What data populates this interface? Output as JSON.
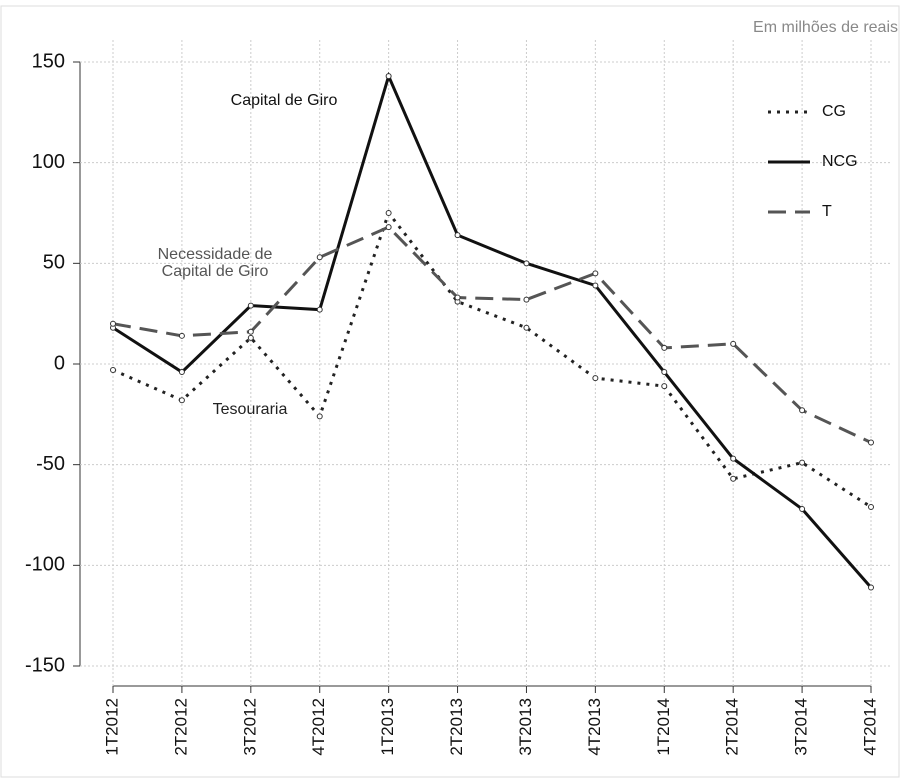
{
  "chart_data": {
    "type": "line",
    "subtitle": "Em milhões de reais",
    "categories": [
      "1T2012",
      "2T2012",
      "3T2012",
      "4T2012",
      "1T2013",
      "2T2013",
      "3T2013",
      "4T2013",
      "1T2014",
      "2T2014",
      "3T2014",
      "4T2014"
    ],
    "series": [
      {
        "name": "CG",
        "color": "#222222",
        "dash": "dotted",
        "values": [
          -3,
          -18,
          13,
          -26,
          75,
          31,
          18,
          -7,
          -11,
          -57,
          -49,
          -71
        ]
      },
      {
        "name": "NCG",
        "color": "#111111",
        "dash": "solid",
        "values": [
          18,
          -4,
          29,
          27,
          143,
          64,
          50,
          39,
          -4,
          -47,
          -72,
          -111
        ]
      },
      {
        "name": "T",
        "color": "#555555",
        "dash": "dashed",
        "values": [
          20,
          14,
          16,
          53,
          68,
          33,
          32,
          45,
          8,
          10,
          -23,
          -39
        ]
      }
    ],
    "annotations": [
      {
        "lines": [
          "Capital de Giro"
        ]
      },
      {
        "lines": [
          "Necessidade de",
          "Capital de Giro"
        ]
      },
      {
        "lines": [
          "Tesouraria"
        ]
      }
    ],
    "ylim": [
      -150,
      150
    ],
    "yticks": [
      -150,
      -100,
      -50,
      0,
      50,
      100,
      150
    ],
    "grid": true
  }
}
